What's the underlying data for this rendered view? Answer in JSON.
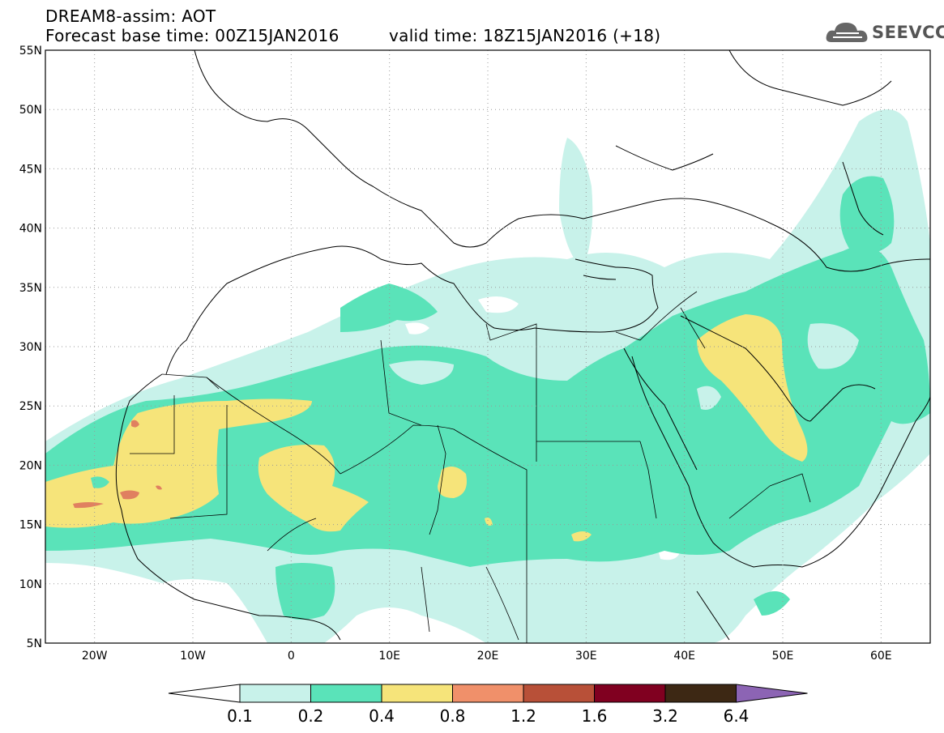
{
  "header": {
    "line1": "DREAM8-assim: AOT",
    "line2": "Forecast base time: 00Z15JAN2016",
    "line3": "valid time: 18Z15JAN2016 (+18)"
  },
  "logo": {
    "text": "SEEVCCC",
    "icon": "cloud-icon"
  },
  "map": {
    "lat_labels": [
      "55N",
      "50N",
      "45N",
      "40N",
      "35N",
      "30N",
      "25N",
      "20N",
      "15N",
      "10N",
      "5N"
    ],
    "lon_labels": [
      "20W",
      "10W",
      "0",
      "10E",
      "20E",
      "30E",
      "40E",
      "50E",
      "60E"
    ],
    "lat_range": [
      5,
      55
    ],
    "lon_range": [
      -25,
      65
    ],
    "grid": "dotted"
  },
  "legend": {
    "labels": [
      "0.1",
      "0.2",
      "0.4",
      "0.8",
      "1.2",
      "1.6",
      "3.2",
      "6.4"
    ],
    "colors": [
      "#ffffff",
      "#c8f2ea",
      "#5ae3b9",
      "#f6e47a",
      "#f0906a",
      "#b85038",
      "#800020",
      "#3d2814",
      "#8c64b4"
    ]
  },
  "colors": {
    "level1": "#c8f2ea",
    "level2": "#5ae3b9",
    "level3": "#f6e47a",
    "level4": "#e08060",
    "coast": "#000000"
  }
}
